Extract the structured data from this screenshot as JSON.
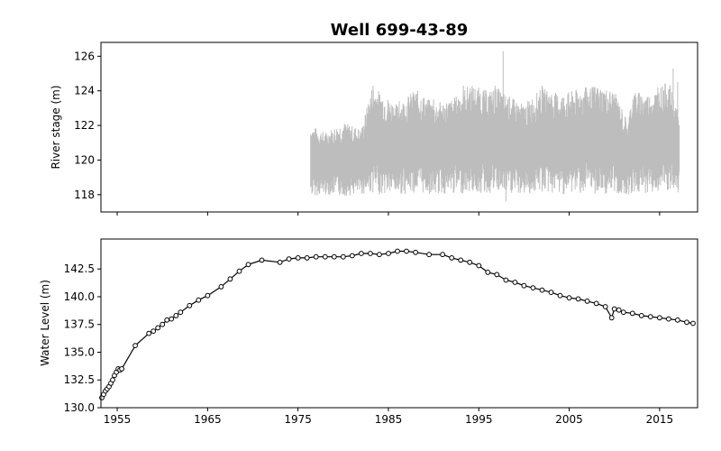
{
  "chart_data": [
    {
      "type": "line",
      "title": "Well 699-43-89",
      "xlabel": "",
      "ylabel": "River stage (m)",
      "ylim": [
        117.0,
        126.8
      ],
      "xlim": [
        1953.2,
        2019.2
      ],
      "yticks": [
        "118",
        "120",
        "122",
        "124",
        "126"
      ],
      "xticks": [
        1955,
        1965,
        1975,
        1985,
        1995,
        2005,
        2015
      ],
      "x_tick_labels_shown": false,
      "grid": false,
      "colors": {
        "series": "#bdbdbd"
      },
      "series": [
        {
          "description_values": "daily river stage oscillation",
          "x": [
            1976.4,
            1978,
            1980,
            1982,
            1983.2,
            1984,
            1986,
            1988,
            1990,
            1992,
            1994,
            1996,
            1997,
            1998,
            2000,
            2002,
            2004,
            2006,
            2008,
            2010,
            2011.5,
            2012,
            2014,
            2016,
            2017.2
          ],
          "min": [
            117.9,
            118.0,
            117.9,
            118.0,
            118.1,
            118.0,
            118.0,
            118.1,
            118.0,
            118.0,
            118.1,
            118.0,
            118.1,
            118.0,
            118.0,
            118.1,
            118.0,
            118.1,
            118.0,
            118.0,
            118.0,
            118.0,
            118.1,
            118.1,
            118.0
          ],
          "max": [
            122.0,
            121.6,
            122.2,
            121.8,
            124.3,
            124.0,
            123.2,
            124.1,
            123.3,
            123.5,
            124.4,
            124.0,
            124.2,
            123.8,
            123.2,
            124.2,
            123.8,
            124.1,
            124.3,
            124.0,
            122.2,
            124.0,
            123.8,
            124.6,
            122.4
          ]
        }
      ]
    },
    {
      "type": "line",
      "xlabel": "",
      "ylabel": "Water Level (m)",
      "ylim": [
        130.0,
        145.2
      ],
      "xlim": [
        1953.2,
        2019.2
      ],
      "yticks": [
        "130.0",
        "132.5",
        "135.0",
        "137.5",
        "140.0",
        "142.5"
      ],
      "xticks": [
        "1955",
        "1965",
        "1975",
        "1985",
        "1995",
        "2005",
        "2015"
      ],
      "grid": false,
      "colors": {
        "line": "#000000",
        "marker_face": "#ffffff",
        "marker_edge": "#000000"
      },
      "series": [
        {
          "marker": "circle",
          "x": [
            1953.3,
            1953.5,
            1953.7,
            1953.9,
            1954.1,
            1954.3,
            1954.5,
            1954.7,
            1954.9,
            1955.1,
            1955.3,
            1955.5,
            1957.0,
            1958.5,
            1959.0,
            1959.5,
            1960.0,
            1960.5,
            1961.0,
            1961.5,
            1962.0,
            1963.0,
            1964.0,
            1965.0,
            1966.5,
            1967.5,
            1968.5,
            1969.5,
            1971.0,
            1973.0,
            1974.0,
            1975.0,
            1976.0,
            1977.0,
            1978.0,
            1979.0,
            1980.0,
            1981.0,
            1982.0,
            1983.0,
            1984.0,
            1985.0,
            1986.0,
            1987.0,
            1988.0,
            1989.5,
            1991.0,
            1992.0,
            1993.0,
            1994.0,
            1995.0,
            1996.0,
            1997.0,
            1998.0,
            1999.0,
            2000.0,
            2001.0,
            2002.0,
            2003.0,
            2004.0,
            2005.0,
            2006.0,
            2007.0,
            2008.0,
            2009.0,
            2009.7,
            2010.0,
            2010.5,
            2011.0,
            2012.0,
            2013.0,
            2014.0,
            2015.0,
            2016.0,
            2017.0,
            2018.0,
            2018.7
          ],
          "y": [
            130.9,
            131.2,
            131.5,
            131.7,
            131.9,
            132.2,
            132.5,
            132.9,
            133.2,
            133.5,
            133.4,
            133.5,
            135.6,
            136.7,
            136.9,
            137.2,
            137.5,
            137.9,
            138.0,
            138.3,
            138.6,
            139.2,
            139.7,
            140.1,
            140.9,
            141.6,
            142.3,
            142.9,
            143.3,
            143.1,
            143.4,
            143.5,
            143.5,
            143.6,
            143.6,
            143.6,
            143.6,
            143.7,
            143.9,
            143.9,
            143.8,
            143.9,
            144.1,
            144.1,
            144.0,
            143.8,
            143.8,
            143.5,
            143.3,
            143.1,
            142.8,
            142.2,
            142.0,
            141.5,
            141.3,
            141.0,
            140.8,
            140.6,
            140.4,
            140.1,
            139.9,
            139.8,
            139.6,
            139.4,
            139.1,
            138.1,
            138.9,
            138.8,
            138.6,
            138.5,
            138.3,
            138.2,
            138.1,
            138.0,
            137.9,
            137.7,
            137.6
          ]
        }
      ]
    }
  ]
}
